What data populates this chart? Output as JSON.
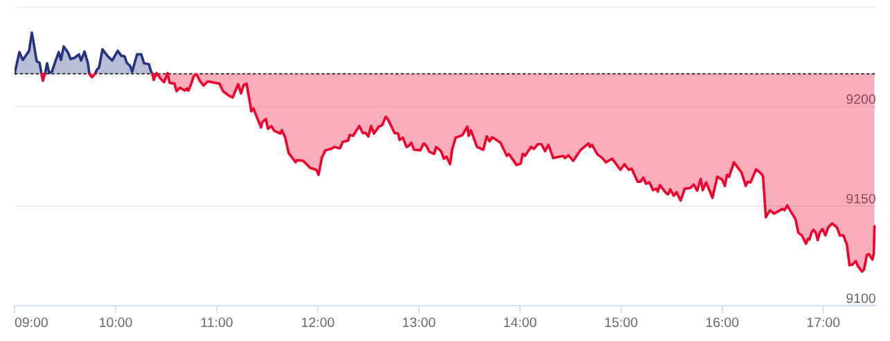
{
  "chart_data": {
    "type": "line",
    "series": [
      {
        "color": "#23337f",
        "x": [
          9.0,
          9.048,
          9.082,
          9.144,
          9.171,
          9.185,
          9.219,
          9.247,
          9.267,
          9.281,
          9.301,
          9.322,
          9.342,
          9.37,
          9.404,
          9.438,
          9.459,
          9.486,
          9.527,
          9.555,
          9.596,
          9.637,
          9.658,
          9.692,
          9.726,
          9.74,
          9.767,
          9.795,
          9.815,
          9.836,
          9.87,
          9.918,
          9.966,
          10.021,
          10.055,
          10.089,
          10.11,
          10.144,
          10.164,
          10.212,
          10.253,
          10.281,
          10.329,
          10.349,
          10.363
        ],
        "values": [
          9216.4,
          9227.3,
          9223.4,
          9228.0,
          9237.1,
          9233.2,
          9222.7,
          9222.0,
          9216.4,
          null,
          9216.4,
          9221.7,
          9216.8,
          9217.5,
          9222.7,
          9227.3,
          9223.4,
          9230.1,
          9227.3,
          9223.8,
          9224.5,
          9226.2,
          9223.1,
          9227.6,
          9221.7,
          9216.4,
          null,
          9216.4,
          9218.5,
          9219.6,
          9228.7,
          9225.5,
          9223.1,
          9228.0,
          9225.5,
          9225.2,
          9222.0,
          9220.3,
          9217.5,
          9226.2,
          9226.2,
          9221.7,
          9221.3,
          9217.8,
          9216.4
        ],
        "lower": [
          9216.4,
          9216.4,
          9216.4,
          9216.4,
          9216.4,
          9216.4,
          9216.4,
          9216.4,
          9216.4,
          null,
          9216.4,
          9216.4,
          9216.4,
          9216.4,
          9216.4,
          9216.4,
          9216.4,
          9216.4,
          9216.4,
          9216.4,
          9216.4,
          9216.4,
          9216.4,
          9216.4,
          9216.4,
          9216.4,
          null,
          9216.4,
          9216.4,
          9216.4,
          9216.4,
          9216.4,
          9216.4,
          9216.4,
          9216.4,
          9216.4,
          9216.4,
          9216.4,
          9216.4,
          9216.4,
          9216.4,
          9216.4,
          9216.4,
          9216.4,
          9216.4
        ],
        "upper": [
          9216.4,
          9227.3,
          9223.4,
          9228.0,
          9237.1,
          9233.2,
          9222.7,
          9222.0,
          9216.4,
          null,
          9216.4,
          9221.7,
          9216.8,
          9217.5,
          9222.7,
          9227.3,
          9223.4,
          9230.1,
          9227.3,
          9223.8,
          9224.5,
          9226.2,
          9223.1,
          9227.6,
          9221.7,
          9216.4,
          null,
          9216.4,
          9218.5,
          9219.6,
          9228.7,
          9225.5,
          9223.1,
          9228.0,
          9225.5,
          9225.2,
          9222.0,
          9220.3,
          9217.5,
          9226.2,
          9226.2,
          9221.7,
          9221.3,
          9217.8,
          9216.4
        ]
      },
      {
        "color": "#f0022d",
        "x": [
          9.267,
          9.281,
          9.301,
          9.5,
          9.74,
          9.767,
          9.795,
          10.0,
          10.363,
          10.377,
          10.404,
          10.445,
          10.479,
          10.514,
          10.534,
          10.582,
          10.603,
          10.637,
          10.685,
          10.705,
          10.719,
          10.747,
          10.774,
          10.801,
          10.836,
          10.87,
          10.911,
          11.027,
          11.062,
          11.116,
          11.158,
          11.212,
          11.24,
          11.267,
          11.295,
          11.329,
          11.342,
          11.363,
          11.438,
          11.452,
          11.486,
          11.507,
          11.541,
          11.568,
          11.63,
          11.644,
          11.678,
          11.712,
          11.781,
          11.795,
          11.856,
          11.925,
          11.986,
          12.007,
          12.041,
          12.075,
          12.13,
          12.164,
          12.219,
          12.247,
          12.301,
          12.315,
          12.349,
          12.411,
          12.445,
          12.473,
          12.5,
          12.527,
          12.555,
          12.603,
          12.637,
          12.671,
          12.692,
          12.76,
          12.795,
          12.808,
          12.842,
          12.877,
          12.897,
          12.925,
          12.952,
          13.014,
          13.048,
          13.075,
          13.103,
          13.151,
          13.171,
          13.219,
          13.247,
          13.274,
          13.308,
          13.329,
          13.363,
          13.432,
          13.479,
          13.493,
          13.514,
          13.575,
          13.637,
          13.671,
          13.699,
          13.726,
          13.808,
          13.87,
          13.89,
          13.966,
          14.007,
          14.027,
          14.048,
          14.11,
          14.137,
          14.178,
          14.212,
          14.247,
          14.281,
          14.329,
          14.425,
          14.445,
          14.479,
          14.527,
          14.596,
          14.678,
          14.692,
          14.712,
          14.767,
          14.815,
          14.849,
          14.911,
          14.993,
          15.034,
          15.075,
          15.103,
          15.164,
          15.192,
          15.219,
          15.247,
          15.281,
          15.315,
          15.349,
          15.363,
          15.384,
          15.445,
          15.466,
          15.486,
          15.521,
          15.548,
          15.589,
          15.63,
          15.685,
          15.719,
          15.753,
          15.788,
          15.808,
          15.842,
          15.904,
          15.952,
          16.0,
          16.027,
          16.048,
          16.068,
          16.116,
          16.192,
          16.233,
          16.253,
          16.281,
          16.336,
          16.384,
          16.404,
          16.432,
          16.473,
          16.514,
          16.548,
          16.596,
          16.616,
          16.644,
          16.671,
          16.726,
          16.753,
          16.788,
          16.829,
          16.849,
          16.863,
          16.884,
          16.904,
          16.925,
          16.945,
          16.966,
          16.993,
          17.021,
          17.048,
          17.089,
          17.137,
          17.164,
          17.199,
          17.233,
          17.26,
          17.288,
          17.322,
          17.342,
          17.384,
          17.404,
          17.432,
          17.452,
          17.486,
          17.5,
          17.507
        ],
        "values": [
          9216.4,
          9212.9,
          9216.4,
          null,
          9216.4,
          9214.7,
          9216.4,
          null,
          9216.4,
          9213.3,
          9216.8,
          9214.0,
          9212.2,
          9216.8,
          9211.9,
          9211.5,
          9207.7,
          9209.4,
          9208.0,
          9209.1,
          9208.0,
          9211.2,
          9215.4,
          9216.1,
          9212.6,
          9210.5,
          9212.6,
          9211.5,
          9207.7,
          9205.6,
          9204.5,
          9211.2,
          9206.6,
          9210.8,
          9211.5,
          9201.7,
          9197.6,
          9199.0,
          9189.5,
          9192.3,
          9193.7,
          9188.8,
          9190.2,
          9187.8,
          9186.4,
          9188.1,
          9184.3,
          9176.6,
          9172.0,
          9173.1,
          9172.7,
          9169.2,
          9168.2,
          9165.7,
          9174.5,
          9178.0,
          9178.7,
          9179.7,
          9179.0,
          9182.2,
          9182.9,
          9185.7,
          9185.3,
          9190.2,
          9186.7,
          9186.7,
          9185.0,
          9190.2,
          9186.4,
          9189.9,
          9190.6,
          9194.8,
          9193.7,
          9186.7,
          9186.4,
          9183.2,
          9184.3,
          9179.7,
          9180.1,
          9181.8,
          9178.3,
          9178.0,
          9181.5,
          9180.1,
          9177.3,
          9176.2,
          9179.7,
          9177.6,
          9173.8,
          9174.8,
          9171.0,
          9178.3,
          9184.3,
          9185.7,
          9189.9,
          9185.3,
          9188.1,
          9179.7,
          9178.3,
          9185.0,
          9182.5,
          9184.6,
          9181.8,
          9175.2,
          9176.2,
          9170.6,
          9171.3,
          9176.2,
          9175.2,
          9179.7,
          9178.7,
          9181.1,
          9181.1,
          9177.6,
          9180.8,
          9174.1,
          9175.2,
          9174.1,
          9175.5,
          9172.7,
          9178.0,
          9181.5,
          9179.7,
          9180.8,
          9175.9,
          9174.1,
          9172.0,
          9173.8,
          9168.2,
          9171.0,
          9168.2,
          9168.9,
          9162.2,
          9162.2,
          9164.3,
          9161.2,
          9161.9,
          9158.0,
          9158.7,
          9157.3,
          9160.5,
          9156.6,
          9155.9,
          9158.4,
          9155.2,
          9157.0,
          9152.8,
          9158.7,
          9159.1,
          9160.8,
          9157.7,
          9163.6,
          9158.0,
          9161.9,
          9154.2,
          9164.7,
          9163.3,
          9160.1,
          9165.7,
          9164.7,
          9172.0,
          9166.8,
          9160.1,
          9162.2,
          9161.9,
          9168.5,
          9166.4,
          9165.0,
          9144.4,
          9147.9,
          9146.2,
          9147.2,
          9148.6,
          9147.9,
          9150.3,
          9147.9,
          9143.4,
          9136.7,
          9135.3,
          9131.1,
          9133.6,
          9133.2,
          9136.7,
          9138.1,
          9136.7,
          9132.9,
          9136.7,
          9138.5,
          9135.3,
          9139.2,
          9141.3,
          9139.2,
          9135.3,
          9135.3,
          9130.8,
          9120.3,
          9120.6,
          9122.4,
          9119.9,
          9117.1,
          9118.2,
          9125.5,
          9125.9,
          9123.1,
          9126.2,
          9139.9
        ],
        "lower": [
          9216.4,
          9212.9,
          9216.4,
          null,
          9216.4,
          9214.7,
          9216.4,
          null,
          9216.4,
          9213.3,
          9216.8,
          9214.0,
          9212.2,
          9216.8,
          9211.9,
          9211.5,
          9207.7,
          9209.4,
          9208.0,
          9209.1,
          9208.0,
          9211.2,
          9215.4,
          9216.1,
          9212.6,
          9210.5,
          9212.6,
          9211.5,
          9207.7,
          9205.6,
          9204.5,
          9211.2,
          9206.6,
          9210.8,
          9211.5,
          9201.7,
          9197.6,
          9199.0,
          9189.5,
          9192.3,
          9193.7,
          9188.8,
          9190.2,
          9187.8,
          9186.4,
          9188.1,
          9184.3,
          9176.6,
          9172.0,
          9173.1,
          9172.7,
          9169.2,
          9168.2,
          9165.7,
          9174.5,
          9178.0,
          9178.7,
          9179.7,
          9179.0,
          9182.2,
          9182.9,
          9185.7,
          9185.3,
          9190.2,
          9186.7,
          9186.7,
          9185.0,
          9190.2,
          9186.4,
          9189.9,
          9190.6,
          9194.8,
          9193.7,
          9186.7,
          9186.4,
          9183.2,
          9184.3,
          9179.7,
          9180.1,
          9181.8,
          9178.3,
          9178.0,
          9181.5,
          9180.1,
          9177.3,
          9176.2,
          9179.7,
          9177.6,
          9173.8,
          9174.8,
          9171.0,
          9178.3,
          9184.3,
          9185.7,
          9189.9,
          9185.3,
          9188.1,
          9179.7,
          9178.3,
          9185.0,
          9182.5,
          9184.6,
          9181.8,
          9175.2,
          9176.2,
          9170.6,
          9171.3,
          9176.2,
          9175.2,
          9179.7,
          9178.7,
          9181.1,
          9181.1,
          9177.6,
          9180.8,
          9174.1,
          9175.2,
          9174.1,
          9175.5,
          9172.7,
          9178.0,
          9181.5,
          9179.7,
          9180.8,
          9175.9,
          9174.1,
          9172.0,
          9173.8,
          9168.2,
          9171.0,
          9168.2,
          9168.9,
          9162.2,
          9162.2,
          9164.3,
          9161.2,
          9161.9,
          9158.0,
          9158.7,
          9157.3,
          9160.5,
          9156.6,
          9155.9,
          9158.4,
          9155.2,
          9157.0,
          9152.8,
          9158.7,
          9159.1,
          9160.8,
          9157.7,
          9163.6,
          9158.0,
          9161.9,
          9154.2,
          9164.7,
          9163.3,
          9160.1,
          9165.7,
          9164.7,
          9172.0,
          9166.8,
          9160.1,
          9162.2,
          9161.9,
          9168.5,
          9166.4,
          9165.0,
          9144.4,
          9147.9,
          9146.2,
          9147.2,
          9148.6,
          9147.9,
          9150.3,
          9147.9,
          9143.4,
          9136.7,
          9135.3,
          9131.1,
          9133.6,
          9133.2,
          9136.7,
          9138.1,
          9136.7,
          9132.9,
          9136.7,
          9138.5,
          9135.3,
          9139.2,
          9141.3,
          9139.2,
          9135.3,
          9135.3,
          9130.8,
          9120.3,
          9120.6,
          9122.4,
          9119.9,
          9117.1,
          9118.2,
          9125.5,
          9125.9,
          9123.1,
          9126.2,
          9139.9
        ],
        "upper": [
          9216.4,
          9216.4,
          9216.4,
          null,
          9216.4,
          9216.4,
          9216.4,
          null,
          9216.4,
          9216.4,
          9216.4,
          9216.4,
          9216.4,
          9216.4,
          9216.4,
          9216.4,
          9216.4,
          9216.4,
          9216.4,
          9216.4,
          9216.4,
          9216.4,
          9216.4,
          9216.4,
          9216.4,
          9216.4,
          9216.4,
          9216.4,
          9216.4,
          9216.4,
          9216.4,
          9216.4,
          9216.4,
          9216.4,
          9216.4,
          9216.4,
          9216.4,
          9216.4,
          9216.4,
          9216.4,
          9216.4,
          9216.4,
          9216.4,
          9216.4,
          9216.4,
          9216.4,
          9216.4,
          9216.4,
          9216.4,
          9216.4,
          9216.4,
          9216.4,
          9216.4,
          9216.4,
          9216.4,
          9216.4,
          9216.4,
          9216.4,
          9216.4,
          9216.4,
          9216.4,
          9216.4,
          9216.4,
          9216.4,
          9216.4,
          9216.4,
          9216.4,
          9216.4,
          9216.4,
          9216.4,
          9216.4,
          9216.4,
          9216.4,
          9216.4,
          9216.4,
          9216.4,
          9216.4,
          9216.4,
          9216.4,
          9216.4,
          9216.4,
          9216.4,
          9216.4,
          9216.4,
          9216.4,
          9216.4,
          9216.4,
          9216.4,
          9216.4,
          9216.4,
          9216.4,
          9216.4,
          9216.4,
          9216.4,
          9216.4,
          9216.4,
          9216.4,
          9216.4,
          9216.4,
          9216.4,
          9216.4,
          9216.4,
          9216.4,
          9216.4,
          9216.4,
          9216.4,
          9216.4,
          9216.4,
          9216.4,
          9216.4,
          9216.4,
          9216.4,
          9216.4,
          9216.4,
          9216.4,
          9216.4,
          9216.4,
          9216.4,
          9216.4,
          9216.4,
          9216.4,
          9216.4,
          9216.4,
          9216.4,
          9216.4,
          9216.4,
          9216.4,
          9216.4,
          9216.4,
          9216.4,
          9216.4,
          9216.4,
          9216.4,
          9216.4,
          9216.4,
          9216.4,
          9216.4,
          9216.4,
          9216.4,
          9216.4,
          9216.4,
          9216.4,
          9216.4,
          9216.4,
          9216.4,
          9216.4,
          9216.4,
          9216.4,
          9216.4,
          9216.4,
          9216.4,
          9216.4,
          9216.4,
          9216.4,
          9216.4,
          9216.4,
          9216.4,
          9216.4,
          9216.4,
          9216.4,
          9216.4,
          9216.4,
          9216.4,
          9216.4,
          9216.4,
          9216.4,
          9216.4,
          9216.4,
          9216.4,
          9216.4,
          9216.4,
          9216.4,
          9216.4,
          9216.4,
          9216.4,
          9216.4,
          9216.4,
          9216.4,
          9216.4,
          9216.4,
          9216.4,
          9216.4,
          9216.4,
          9216.4,
          9216.4,
          9216.4,
          9216.4,
          9216.4,
          9216.4,
          9216.4,
          9216.4,
          9216.4,
          9216.4,
          9216.4,
          9216.4,
          9216.4,
          9216.4,
          9216.4,
          9216.4,
          9216.4,
          9216.4,
          9216.4,
          9216.4,
          9216.4,
          9216.4,
          9216.4
        ]
      }
    ],
    "xlim": [
      9,
      17.53
    ],
    "xticks": [
      {
        "value": 9,
        "label": "09:00"
      },
      {
        "value": 10,
        "label": "10:00"
      },
      {
        "value": 11,
        "label": "11:00"
      },
      {
        "value": 12,
        "label": "12:00"
      },
      {
        "value": 13,
        "label": "13:00"
      },
      {
        "value": 14,
        "label": "14:00"
      },
      {
        "value": 15,
        "label": "15:00"
      },
      {
        "value": 16,
        "label": "16:00"
      },
      {
        "value": 17,
        "label": "17:00"
      }
    ],
    "ylim": [
      9100,
      9250
    ],
    "yticks": [
      9100,
      9150,
      9200,
      {
        "value": 9250,
        "label": null
      }
    ],
    "ref_lines": [
      {
        "axis": "y",
        "value": 9216.4,
        "color": "#000000",
        "line_style": "dashed"
      }
    ],
    "grid": "y"
  }
}
